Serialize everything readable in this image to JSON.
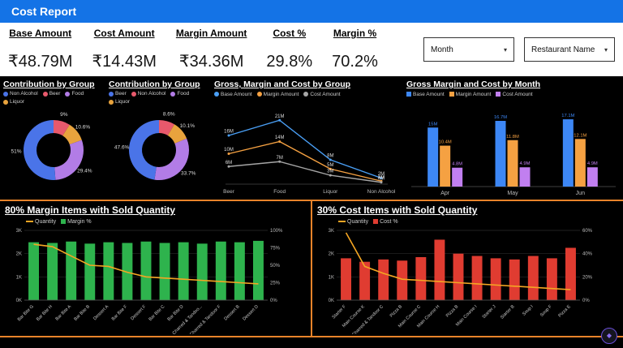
{
  "header": {
    "title": "Cost Report"
  },
  "kpis": [
    {
      "label": "Base Amount",
      "value": "₹48.79M"
    },
    {
      "label": "Cost Amount",
      "value": "₹14.43M"
    },
    {
      "label": "Margin Amount",
      "value": "₹34.36M"
    },
    {
      "label": "Cost %",
      "value": "29.8%"
    },
    {
      "label": "Margin %",
      "value": "70.2%"
    }
  ],
  "filters": [
    {
      "label": "Month"
    },
    {
      "label": "Restaurant Name"
    }
  ],
  "colors": {
    "header_bg": "#1473e6",
    "divider_orange": "#e8832a",
    "background": "#000000",
    "quantity_line": "#f5a623",
    "margin_bar_green": "#2eb34d",
    "cost_bar_red": "#e03c31"
  },
  "chart_data": [
    {
      "type": "pie",
      "title": "Contribution by Group",
      "legend": [
        "Non Alcohol",
        "Beer",
        "Food",
        "Liquor"
      ],
      "legend_colors": [
        "#4a74e8",
        "#e8596c",
        "#b27ce6",
        "#e8a33d"
      ],
      "slices": [
        {
          "label": "Beer",
          "value": 9,
          "text": "9%",
          "color": "#e8596c"
        },
        {
          "label": "Liquor",
          "value": 10.6,
          "text": "10.6%",
          "color": "#e8a33d"
        },
        {
          "label": "Food",
          "value": 29.4,
          "text": "29.4%",
          "color": "#b27ce6"
        },
        {
          "label": "Non Alcohol",
          "value": 51,
          "text": "51%",
          "color": "#4a74e8"
        }
      ]
    },
    {
      "type": "pie",
      "title": "Contribution by Group",
      "legend": [
        "Beer",
        "Non Alcohol",
        "Food",
        "Liquor"
      ],
      "legend_colors": [
        "#4a74e8",
        "#e8596c",
        "#b27ce6",
        "#e8a33d"
      ],
      "slices": [
        {
          "label": "Non Alcohol",
          "value": 8.6,
          "text": "8.6%",
          "color": "#e8596c"
        },
        {
          "label": "Liquor",
          "value": 10.1,
          "text": "10.1%",
          "color": "#e8a33d"
        },
        {
          "label": "Food",
          "value": 33.7,
          "text": "33.7%",
          "color": "#b27ce6"
        },
        {
          "label": "Beer",
          "value": 47.6,
          "text": "47.6%",
          "color": "#4a74e8"
        }
      ]
    },
    {
      "type": "line",
      "title": "Gross, Margin and Cost by Group",
      "categories": [
        "Beer",
        "Food",
        "Liquor",
        "Non Alcohol"
      ],
      "ylim": [
        0,
        24
      ],
      "series": [
        {
          "name": "Base Amount",
          "color": "#4a9ff5",
          "values": [
            16,
            21,
            8,
            2
          ],
          "labels": [
            "16M",
            "21M",
            "8M",
            "2M"
          ]
        },
        {
          "name": "Margin Amount",
          "color": "#f5a142",
          "values": [
            10,
            14,
            5,
            1
          ],
          "labels": [
            "10M",
            "14M",
            "5M",
            "1M"
          ]
        },
        {
          "name": "Cost Amount",
          "color": "#a6a6a6",
          "values": [
            5.8,
            7.4,
            2.9,
            0.6
          ],
          "labels": [
            "6M",
            "7M",
            "3M",
            "0M"
          ]
        }
      ]
    },
    {
      "type": "bar",
      "title": "Gross Margin and Cost by Month",
      "categories": [
        "Apr",
        "May",
        "Jun"
      ],
      "ylim": [
        0,
        20
      ],
      "series": [
        {
          "name": "Base Amount",
          "color": "#3d87f5",
          "values": [
            15,
            16.7,
            17.1
          ],
          "labels": [
            "15M",
            "16.7M",
            "17.1M"
          ]
        },
        {
          "name": "Margin Amount",
          "color": "#f5a142",
          "values": [
            10.4,
            11.8,
            12.1
          ],
          "labels": [
            "10.4M",
            "11.8M",
            "12.1M"
          ]
        },
        {
          "name": "Cost Amount",
          "color": "#c17ff0",
          "values": [
            4.8,
            4.9,
            4.9
          ],
          "labels": [
            "4.8M",
            "4.9M",
            "4.9M"
          ]
        }
      ]
    },
    {
      "type": "combo",
      "title": "80% Margin Items with Sold Quantity",
      "legend": [
        {
          "name": "Quantity",
          "color": "#f5a623",
          "marker": "line"
        },
        {
          "name": "Margin %",
          "color": "#2eb34d",
          "marker": "sq"
        }
      ],
      "categories": [
        "Bar Bite G",
        "Bar Bite H",
        "Bar Bite A",
        "Bar Bite B",
        "Dessert A",
        "Bar Bite F",
        "Dessert F",
        "Bar Bite C",
        "Bar Bite D",
        "Charred & Tandoo...",
        "Charred & Tandoor F",
        "Dessert B",
        "Dessert D"
      ],
      "bar_series": {
        "name": "Margin %",
        "color": "#2eb34d",
        "values": [
          83,
          82,
          84,
          81,
          83,
          82,
          84,
          82,
          83,
          81,
          84,
          83,
          85
        ]
      },
      "line_series": {
        "name": "Quantity",
        "color": "#f5a623",
        "values": [
          2400,
          2300,
          1900,
          1500,
          1450,
          1200,
          1000,
          950,
          900,
          850,
          800,
          750,
          700
        ]
      },
      "y_left": {
        "ticks": [
          "0K",
          "1K",
          "2K",
          "3K"
        ],
        "max": 3000
      },
      "y_right": {
        "ticks": [
          "0%",
          "25%",
          "50%",
          "75%",
          "100%"
        ],
        "max": 100
      }
    },
    {
      "type": "combo",
      "title": "30% Cost Items with Sold Quantity",
      "legend": [
        {
          "name": "Quantity",
          "color": "#f5a623",
          "marker": "line"
        },
        {
          "name": "Cost %",
          "color": "#e03c31",
          "marker": "sq"
        }
      ],
      "categories": [
        "Starter F",
        "Main Course K",
        "Charred & Tandoor C",
        "Pizza B",
        "Main Course C",
        "Main Course H",
        "Pizza B",
        "Main Course I",
        "Starter J",
        "Starter B",
        "Soup I",
        "Soup F",
        "Pizza E"
      ],
      "bar_series": {
        "name": "Cost %",
        "color": "#e03c31",
        "values": [
          36,
          33,
          35,
          34,
          37,
          52,
          40,
          38,
          36,
          35,
          38,
          36,
          45
        ]
      },
      "line_series": {
        "name": "Quantity",
        "color": "#f5a623",
        "values": [
          2900,
          1450,
          1150,
          900,
          850,
          800,
          750,
          700,
          650,
          600,
          550,
          500,
          450
        ]
      },
      "y_left": {
        "ticks": [
          "0K",
          "1K",
          "2K",
          "3K"
        ],
        "max": 3000
      },
      "y_right": {
        "ticks": [
          "0%",
          "20%",
          "40%",
          "60%"
        ],
        "max": 60
      }
    }
  ]
}
